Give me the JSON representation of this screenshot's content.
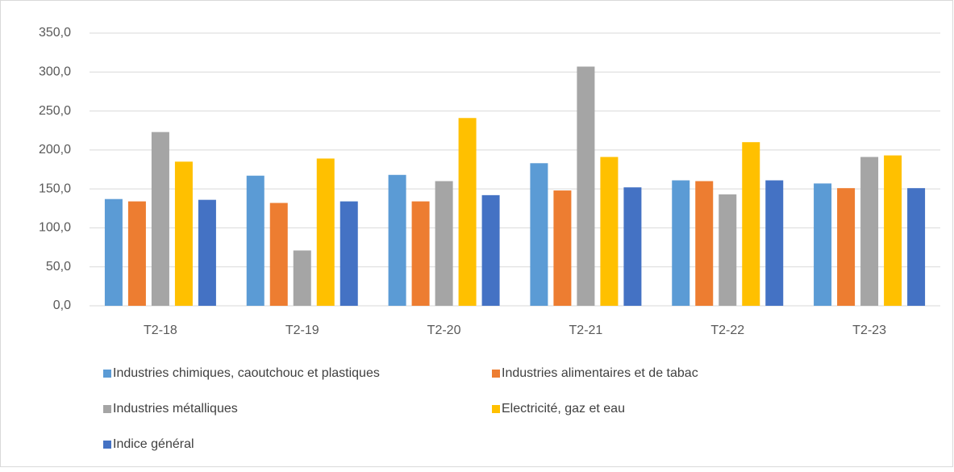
{
  "chart_data": {
    "type": "bar",
    "categories": [
      "T2-18",
      "T2-19",
      "T2-20",
      "T2-21",
      "T2-22",
      "T2-23"
    ],
    "series": [
      {
        "name": "Industries chimiques, caoutchouc et plastiques",
        "color": "#5b9bd5",
        "values": [
          137,
          167,
          168,
          183,
          161,
          157
        ]
      },
      {
        "name": "Industries alimentaires et de tabac",
        "color": "#ed7d31",
        "values": [
          134,
          132,
          134,
          148,
          160,
          151
        ]
      },
      {
        "name": "Industries métalliques",
        "color": "#a5a5a5",
        "values": [
          223,
          71,
          160,
          307,
          143,
          191
        ]
      },
      {
        "name": "Electricité, gaz et eau",
        "color": "#ffc000",
        "values": [
          185,
          189,
          241,
          191,
          210,
          193
        ]
      },
      {
        "name": "Indice général",
        "color": "#4472c4",
        "values": [
          136,
          134,
          142,
          152,
          161,
          151
        ]
      }
    ],
    "ylim": [
      0,
      350
    ],
    "yticks": [
      {
        "value": 0,
        "label": "0,0"
      },
      {
        "value": 50,
        "label": "50,0"
      },
      {
        "value": 100,
        "label": "100,0"
      },
      {
        "value": 150,
        "label": "150,0"
      },
      {
        "value": 200,
        "label": "200,0"
      },
      {
        "value": 250,
        "label": "250,0"
      },
      {
        "value": 300,
        "label": "300,0"
      },
      {
        "value": 350,
        "label": "350,0"
      }
    ],
    "grid": true,
    "legend": "bottom"
  }
}
